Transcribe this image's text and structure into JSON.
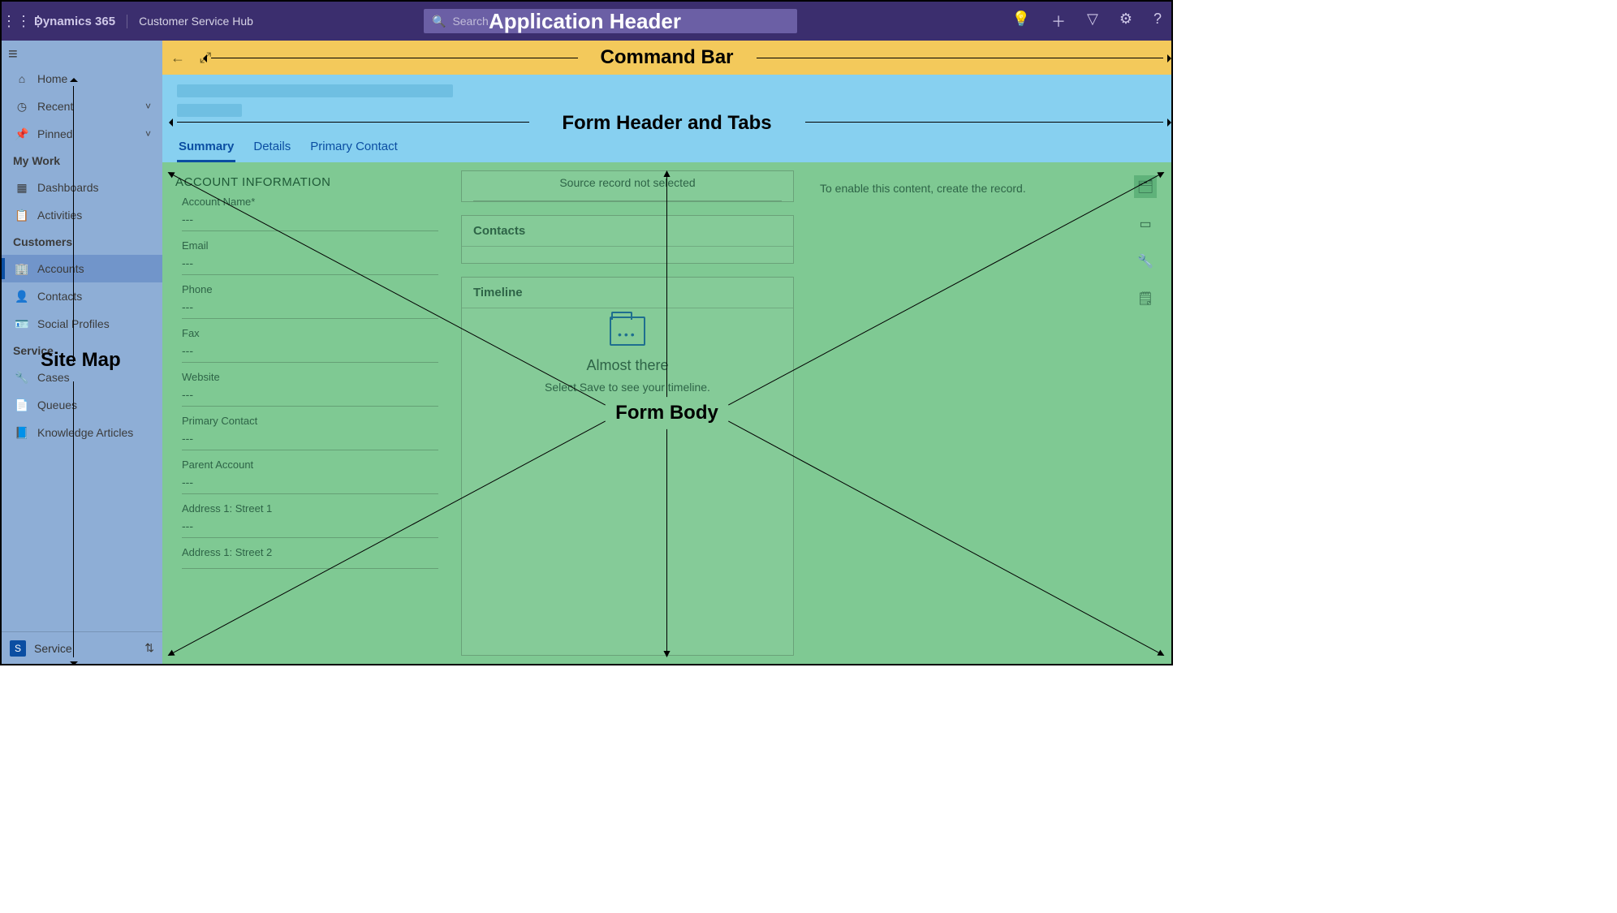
{
  "annotations": {
    "app_header": "Application Header",
    "command_bar": "Command Bar",
    "form_header": "Form Header and Tabs",
    "site_map": "Site Map",
    "form_body": "Form Body"
  },
  "header": {
    "brand": "Dynamics 365",
    "app_name": "Customer Service Hub",
    "search_placeholder": "Search"
  },
  "sidebar": {
    "home": "Home",
    "recent": "Recent",
    "pinned": "Pinned",
    "groups": [
      {
        "title": "My Work",
        "items": [
          "Dashboards",
          "Activities"
        ]
      },
      {
        "title": "Customers",
        "items": [
          "Accounts",
          "Contacts",
          "Social Profiles"
        ]
      },
      {
        "title": "Service",
        "items": [
          "Cases",
          "Queues",
          "Knowledge Articles"
        ]
      }
    ],
    "active": "Accounts",
    "area": "Service",
    "area_tag": "S"
  },
  "tabs": {
    "items": [
      "Summary",
      "Details",
      "Primary Contact"
    ],
    "active": "Summary"
  },
  "account_info": {
    "title": "ACCOUNT INFORMATION",
    "fields": [
      {
        "label": "Account Name*",
        "value": "---"
      },
      {
        "label": "Email",
        "value": "---"
      },
      {
        "label": "Phone",
        "value": "---"
      },
      {
        "label": "Fax",
        "value": "---"
      },
      {
        "label": "Website",
        "value": "---"
      },
      {
        "label": "Primary Contact",
        "value": "---"
      },
      {
        "label": "Parent Account",
        "value": "---"
      },
      {
        "label": "Address 1: Street 1",
        "value": "---"
      },
      {
        "label": "Address 1: Street 2",
        "value": ""
      }
    ]
  },
  "mid": {
    "source_msg": "Source record not selected",
    "contacts_title": "Contacts",
    "timeline_title": "Timeline",
    "timeline_empty_title": "Almost there",
    "timeline_empty_sub": "Select Save to see your timeline."
  },
  "right": {
    "msg": "To enable this content, create the record."
  },
  "colors": {
    "header_bg": "#3b2e6e",
    "sitemap_overlay": "#8eaed6",
    "command_bar_bg": "#f3c95b",
    "form_header_bg": "#87d0f0",
    "form_body_bg": "#7fc993",
    "accent": "#0b4ea2"
  }
}
